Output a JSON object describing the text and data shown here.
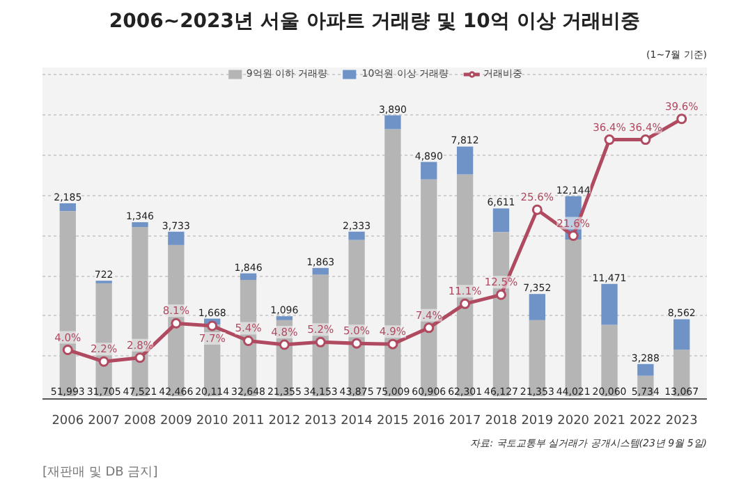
{
  "chart_data": {
    "type": "bar",
    "stacked": true,
    "title": "2006~2023년 서울 아파트 거래량 및 10억 이상 거래비중",
    "subtitle": "(1~7월 기준)",
    "categories": [
      "2006",
      "2007",
      "2008",
      "2009",
      "2010",
      "2011",
      "2012",
      "2013",
      "2014",
      "2015",
      "2016",
      "2017",
      "2018",
      "2019",
      "2020",
      "2021",
      "2022",
      "2023"
    ],
    "series": [
      {
        "name": "9억원 이하 거래량",
        "color": "#b5b5b5",
        "values": [
          51993,
          31705,
          47521,
          42466,
          20114,
          32648,
          21355,
          34153,
          43875,
          75009,
          60906,
          62301,
          46127,
          21353,
          44021,
          20060,
          5734,
          13067
        ],
        "value_labels": [
          "51,993",
          "31,705",
          "47,521",
          "42,466",
          "20,114",
          "32,648",
          "21,355",
          "34,153",
          "43,875",
          "75,009",
          "60,906",
          "62,301",
          "46,127",
          "21,353",
          "44,021",
          "20,060",
          "5,734",
          "13,067"
        ]
      },
      {
        "name": "10억원 이상 거래량",
        "color": "#6f93c6",
        "values": [
          2185,
          722,
          1346,
          3733,
          1668,
          1846,
          1096,
          1863,
          2333,
          3890,
          4890,
          7812,
          6611,
          7352,
          12144,
          11471,
          3288,
          8562
        ],
        "value_labels": [
          "2,185",
          "722",
          "1,346",
          "3,733",
          "1,668",
          "1,846",
          "1,096",
          "1,863",
          "2,333",
          "3,890",
          "4,890",
          "7,812",
          "6,611",
          "7,352",
          "12,144",
          "11,471",
          "3,288",
          "8,562"
        ]
      },
      {
        "name": "거래비중",
        "type": "line",
        "axis": "y2",
        "color": "#b04a60",
        "marker": "circle",
        "values": [
          4.0,
          2.2,
          2.8,
          8.1,
          7.7,
          5.4,
          4.8,
          5.2,
          5.0,
          4.9,
          7.4,
          11.1,
          12.5,
          25.6,
          21.6,
          36.4,
          36.4,
          39.6
        ],
        "value_labels": [
          "4.0%",
          "2.2%",
          "2.8%",
          "8.1%",
          "7.7%",
          "5.4%",
          "4.8%",
          "5.2%",
          "5.0%",
          "4.9%",
          "7.4%",
          "11.1%",
          "12.5%",
          "25.6%",
          "21.6%",
          "36.4%",
          "36.4%",
          "39.6%"
        ]
      }
    ],
    "legend": "top",
    "grid": "y",
    "tick_labels": "x",
    "annotations": [
      "자료: 국토교통부 실거래가 공개시스템(23년 9월 5일)",
      "[재판매 및 DB 금지]"
    ]
  }
}
